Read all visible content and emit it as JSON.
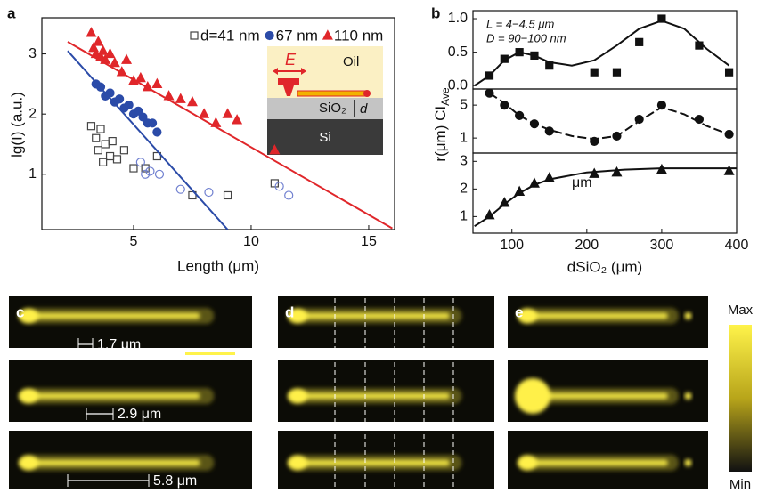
{
  "chart_data": [
    {
      "type": "scatter",
      "panel_label": "a",
      "xlabel": "Length (μm)",
      "ylabel": "lg(I) (a.u.)",
      "xlim": [
        1.1,
        16.1
      ],
      "ylim": [
        0.08,
        3.6
      ],
      "xticks": [
        5,
        10,
        15
      ],
      "yticks": [
        1,
        2,
        3
      ],
      "series": [
        {
          "name": "d=41 nm",
          "color": "#444444",
          "marker": "square",
          "filled": false,
          "x": [
            3.2,
            3.4,
            3.5,
            3.6,
            3.7,
            3.8,
            4.0,
            4.1,
            4.3,
            4.6,
            5.0,
            5.5,
            6.0,
            7.5,
            9.0,
            11.0
          ],
          "values": [
            1.8,
            1.6,
            1.4,
            1.75,
            1.2,
            1.5,
            1.3,
            1.55,
            1.25,
            1.4,
            1.1,
            1.1,
            1.3,
            0.65,
            0.65,
            0.85
          ]
        },
        {
          "name": "67 nm",
          "color": "#2b4ba8",
          "marker": "circle",
          "filled": true,
          "x": [
            3.4,
            3.6,
            3.8,
            4.0,
            4.2,
            4.4,
            4.6,
            4.8,
            5.0,
            5.2,
            5.4,
            5.6,
            5.8,
            6.0
          ],
          "values": [
            2.5,
            2.45,
            2.3,
            2.35,
            2.2,
            2.25,
            2.1,
            2.15,
            2.0,
            2.05,
            1.95,
            1.85,
            1.85,
            1.7
          ]
        },
        {
          "name": "110 nm",
          "color": "#e0262a",
          "marker": "triangle",
          "filled": true,
          "x": [
            3.2,
            3.3,
            3.4,
            3.5,
            3.6,
            3.7,
            3.8,
            4.0,
            4.2,
            4.5,
            4.7,
            5.0,
            5.3,
            5.6,
            6.0,
            6.5,
            7.0,
            7.5,
            8.0,
            8.5,
            9.0,
            9.4,
            11.0
          ],
          "values": [
            3.35,
            3.1,
            3.0,
            3.2,
            2.95,
            3.05,
            2.9,
            3.0,
            2.85,
            2.7,
            2.9,
            2.55,
            2.6,
            2.45,
            2.5,
            2.3,
            2.25,
            2.2,
            2.0,
            1.85,
            2.0,
            1.9,
            1.4
          ]
        },
        {
          "color": "#7080d0",
          "marker": "circle",
          "filled": false,
          "x": [
            5.3,
            5.5,
            5.7,
            6.1,
            7.0,
            8.2,
            11.2,
            11.6
          ],
          "values": [
            1.2,
            1.0,
            1.05,
            1.0,
            0.75,
            0.7,
            0.8,
            0.65
          ]
        },
        {
          "color": "#2b4ba8",
          "line": true,
          "x": [
            2.2,
            9.0
          ],
          "values": [
            3.05,
            0.08
          ]
        },
        {
          "color": "#e0262a",
          "line": true,
          "x": [
            2.2,
            16.0
          ],
          "values": [
            3.2,
            0.1
          ]
        }
      ]
    },
    {
      "type": "scatter",
      "panel_label": "b",
      "annotations": [
        "L = 4−4.5 μm",
        "D = 90−100 nm"
      ],
      "xlim": [
        48,
        400
      ],
      "ylim": [
        -0.05,
        1.12
      ],
      "yticks": [
        {
          "value": 0,
          "label": "0.0"
        },
        0.5,
        {
          "value": 1,
          "label": "1.0"
        }
      ],
      "series": [
        {
          "color": "#111111",
          "marker": "square",
          "filled": true,
          "x": [
            70,
            90,
            110,
            130,
            150,
            210,
            240,
            270,
            300,
            350,
            390
          ],
          "values": [
            0.15,
            0.4,
            0.5,
            0.45,
            0.3,
            0.2,
            0.2,
            0.65,
            1.0,
            0.6,
            0.2
          ]
        },
        {
          "color": "#111111",
          "line": true,
          "x": [
            50,
            70,
            90,
            110,
            130,
            150,
            180,
            210,
            240,
            270,
            300,
            330,
            360,
            390
          ],
          "values": [
            0.0,
            0.15,
            0.38,
            0.5,
            0.45,
            0.35,
            0.3,
            0.38,
            0.6,
            0.85,
            0.97,
            0.85,
            0.55,
            0.3
          ]
        }
      ]
    },
    {
      "type": "scatter",
      "ylabel": "r(μm) CI",
      "ylabel_subscript": "Ave",
      "yscale": "log",
      "xlim": [
        48,
        400
      ],
      "ylim": [
        0.48,
        11
      ],
      "yticks": [
        1,
        5
      ],
      "series": [
        {
          "color": "#111111",
          "marker": "circle",
          "filled": true,
          "x": [
            70,
            90,
            110,
            130,
            150,
            210,
            240,
            270,
            300,
            350,
            390
          ],
          "values": [
            9,
            5,
            3,
            2,
            1.4,
            0.85,
            1.1,
            2.5,
            5,
            2.5,
            1.2
          ]
        },
        {
          "color": "#111111",
          "line": true,
          "dashed": true,
          "x": [
            70,
            90,
            110,
            130,
            150,
            180,
            210,
            240,
            270,
            300,
            330,
            360,
            390
          ],
          "values": [
            9,
            5.5,
            3,
            2,
            1.5,
            1.1,
            0.95,
            1.1,
            2.3,
            4.5,
            3.2,
            1.8,
            1.2
          ]
        }
      ]
    },
    {
      "type": "scatter",
      "xlabel": "dSiO₂ (μm)",
      "annotations": [
        "μm"
      ],
      "xlim": [
        48,
        400
      ],
      "ylim": [
        0.4,
        3.3
      ],
      "xticks": [
        100,
        200,
        300,
        400
      ],
      "yticks": [
        1,
        2,
        3
      ],
      "series": [
        {
          "color": "#111111",
          "marker": "triangle",
          "filled": true,
          "x": [
            70,
            90,
            110,
            130,
            150,
            210,
            240,
            300,
            390
          ],
          "values": [
            1.05,
            1.5,
            1.9,
            2.2,
            2.4,
            2.55,
            2.6,
            2.7,
            2.65
          ]
        },
        {
          "color": "#111111",
          "line": true,
          "x": [
            50,
            70,
            90,
            110,
            130,
            150,
            200,
            250,
            300,
            350,
            400
          ],
          "values": [
            0.65,
            1.0,
            1.45,
            1.85,
            2.15,
            2.35,
            2.6,
            2.7,
            2.75,
            2.75,
            2.75
          ]
        }
      ]
    }
  ],
  "inset": {
    "field": "E",
    "medium": "Oil",
    "layer": "SiO₂",
    "thickness": "d",
    "substrate": "Si"
  },
  "images": {
    "panels": [
      {
        "label": "c",
        "spacings": [
          "1.7 μm",
          "2.9 μm",
          "5.8 μm"
        ]
      },
      {
        "label": "d"
      },
      {
        "label": "e"
      }
    ],
    "colorbar": {
      "max": "Max",
      "min": "Min"
    }
  }
}
